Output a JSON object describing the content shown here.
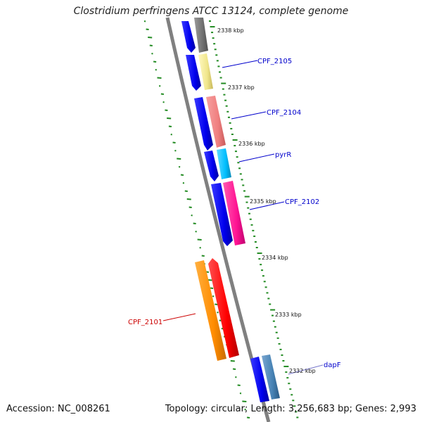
{
  "title": "Clostridium perfringens ATCC 13124, complete genome",
  "footer": {
    "accession_label": "Accession:",
    "accession": "NC_008261",
    "topology_label": "Topology:",
    "topology": "circular",
    "length_label": "Length:",
    "length": "3,256,683 bp",
    "genes_label": "Genes:",
    "genes": "2,993"
  },
  "scale_labels": [
    "2338 kbp",
    "2337 kbp",
    "2336 kbp",
    "2335 kbp",
    "2334 kbp",
    "2333 kbp",
    "2332 kbp"
  ],
  "gene_labels": [
    {
      "text": "CPF_2105",
      "color": "#0000cc"
    },
    {
      "text": "CPF_2104",
      "color": "#0000cc"
    },
    {
      "text": "pyrR",
      "color": "#0000cc"
    },
    {
      "text": "CPF_2102",
      "color": "#0000cc"
    },
    {
      "text": "CPF_2101",
      "color": "#cc0000"
    },
    {
      "text": "dapF",
      "color": "#0000cc"
    }
  ],
  "colors": {
    "backbone": "#808080",
    "cds_forward": "#0000ee",
    "tick_green": "#228b22",
    "feature_gray": "#707070",
    "feature_yellow": "#f0e68c",
    "feature_salmon": "#f08080",
    "feature_cyan": "#00bfff",
    "feature_magenta": "#ff1493",
    "feature_orange": "#ff8c00",
    "feature_red": "#ff0000",
    "feature_steelblue": "#4682b4"
  }
}
